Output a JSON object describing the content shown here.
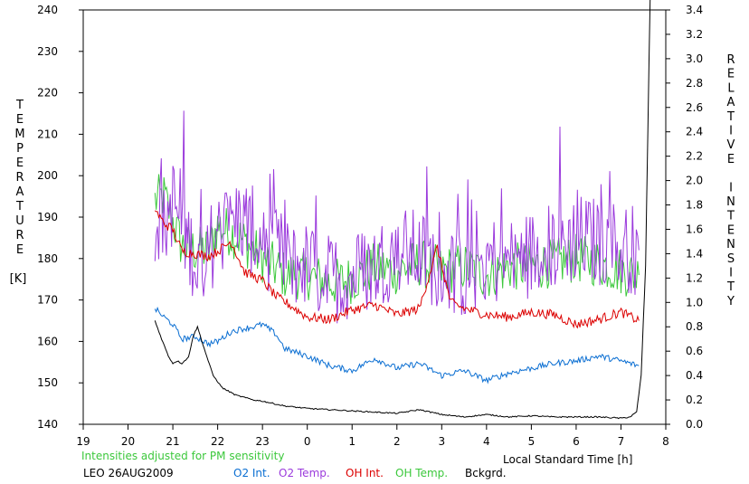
{
  "chart_data": {
    "type": "line",
    "xlabel": "Local Standard Time [h]",
    "x_tick_labels": [
      "19",
      "20",
      "21",
      "22",
      "23",
      "0",
      "1",
      "2",
      "3",
      "4",
      "5",
      "6",
      "7",
      "8"
    ],
    "xlim": [
      19,
      32
    ],
    "left_axis": {
      "label_letters": [
        "T",
        "E",
        "M",
        "P",
        "E",
        "R",
        "A",
        "T",
        "U",
        "R",
        "E"
      ],
      "unit": "[K]",
      "ylim": [
        140,
        240
      ],
      "tick_labels": [
        "140",
        "150",
        "160",
        "170",
        "180",
        "190",
        "200",
        "210",
        "220",
        "230",
        "240"
      ]
    },
    "right_axis": {
      "label_letters": [
        "R",
        "E",
        "L",
        "A",
        "T",
        "I",
        "V",
        "E",
        "",
        "I",
        "N",
        "T",
        "E",
        "N",
        "S",
        "I",
        "T",
        "Y"
      ],
      "ylim": [
        0.0,
        3.4
      ],
      "tick_labels": [
        "0.0",
        "0.2",
        "0.4",
        "0.6",
        "0.8",
        "1.0",
        "1.2",
        "1.4",
        "1.6",
        "1.8",
        "2.0",
        "2.2",
        "2.4",
        "2.6",
        "2.8",
        "3.0",
        "3.2",
        "3.4"
      ]
    },
    "note": "Intensities adjusted for PM sensitivity",
    "station": "LEO 26AUG2009",
    "series": [
      {
        "name": "O2 Int.",
        "color": "#0a6ed2",
        "axis": "right",
        "x": [
          20.6,
          20.8,
          21.0,
          21.2,
          21.5,
          21.8,
          22.0,
          22.3,
          22.5,
          22.8,
          23.0,
          23.3,
          23.5,
          24.0,
          24.5,
          25.0,
          25.5,
          26.0,
          26.5,
          27.0,
          27.5,
          28.0,
          28.5,
          29.0,
          29.5,
          30.0,
          30.5,
          31.0,
          31.4
        ],
        "y": [
          0.95,
          0.88,
          0.82,
          0.7,
          0.72,
          0.66,
          0.68,
          0.76,
          0.78,
          0.8,
          0.82,
          0.74,
          0.62,
          0.56,
          0.48,
          0.44,
          0.54,
          0.46,
          0.5,
          0.4,
          0.44,
          0.36,
          0.42,
          0.46,
          0.5,
          0.52,
          0.56,
          0.52,
          0.48
        ]
      },
      {
        "name": "O2 Temp.",
        "color": "#9b3bdc",
        "axis": "left",
        "x": [
          20.6,
          20.8,
          21.0,
          21.3,
          21.6,
          22.0,
          22.5,
          23.0,
          23.5,
          24.0,
          24.5,
          25.0,
          25.5,
          26.0,
          26.5,
          27.0,
          27.5,
          28.0,
          28.5,
          29.0,
          29.5,
          30.0,
          30.5,
          31.0,
          31.4
        ],
        "y": [
          190,
          188,
          194,
          185,
          178,
          186,
          190,
          184,
          180,
          178,
          175,
          176,
          178,
          182,
          181,
          178,
          176,
          180,
          179,
          181,
          183,
          185,
          184,
          183,
          182
        ]
      },
      {
        "name": "OH Int.",
        "color": "#dc0000",
        "axis": "right",
        "x": [
          20.6,
          20.8,
          21.0,
          21.2,
          21.5,
          21.8,
          22.0,
          22.3,
          22.6,
          23.0,
          23.3,
          23.6,
          24.0,
          24.5,
          25.0,
          25.5,
          26.0,
          26.5,
          26.9,
          27.2,
          27.5,
          28.0,
          28.5,
          29.0,
          29.5,
          30.0,
          30.5,
          31.0,
          31.4
        ],
        "y": [
          1.76,
          1.65,
          1.6,
          1.42,
          1.4,
          1.38,
          1.42,
          1.5,
          1.25,
          1.18,
          1.05,
          0.98,
          0.88,
          0.86,
          0.94,
          0.98,
          0.9,
          0.95,
          1.45,
          1.0,
          0.95,
          0.9,
          0.88,
          0.92,
          0.9,
          0.82,
          0.86,
          0.92,
          0.85
        ]
      },
      {
        "name": "OH Temp.",
        "color": "#3cc83c",
        "axis": "left",
        "x": [
          20.6,
          20.8,
          21.0,
          21.2,
          21.5,
          21.8,
          22.0,
          22.5,
          23.0,
          23.5,
          24.0,
          24.5,
          25.0,
          25.5,
          26.0,
          26.5,
          27.0,
          27.5,
          28.0,
          28.5,
          29.0,
          29.5,
          30.0,
          30.5,
          31.0,
          31.4
        ],
        "y": [
          194,
          195,
          189,
          183,
          182,
          182,
          188,
          185,
          180,
          176,
          176,
          174,
          175,
          178,
          177,
          179,
          177,
          178,
          176,
          178,
          178,
          179,
          180,
          179,
          177,
          176
        ]
      },
      {
        "name": "Bckgrd.",
        "color": "#000000",
        "axis": "right",
        "x": [
          20.6,
          20.75,
          20.9,
          21.0,
          21.1,
          21.2,
          21.35,
          21.45,
          21.55,
          21.7,
          21.9,
          22.1,
          22.4,
          22.8,
          23.0,
          23.5,
          24.0,
          24.5,
          25.0,
          25.5,
          26.0,
          26.5,
          27.0,
          27.5,
          28.0,
          28.5,
          29.0,
          29.5,
          30.0,
          30.5,
          31.0,
          31.2,
          31.35,
          31.45,
          31.55,
          31.65
        ],
        "y": [
          0.85,
          0.7,
          0.56,
          0.5,
          0.52,
          0.5,
          0.55,
          0.72,
          0.8,
          0.62,
          0.4,
          0.3,
          0.24,
          0.2,
          0.19,
          0.15,
          0.13,
          0.12,
          0.11,
          0.1,
          0.09,
          0.12,
          0.08,
          0.06,
          0.08,
          0.06,
          0.07,
          0.06,
          0.06,
          0.06,
          0.05,
          0.06,
          0.1,
          0.4,
          1.3,
          3.5
        ]
      }
    ]
  }
}
